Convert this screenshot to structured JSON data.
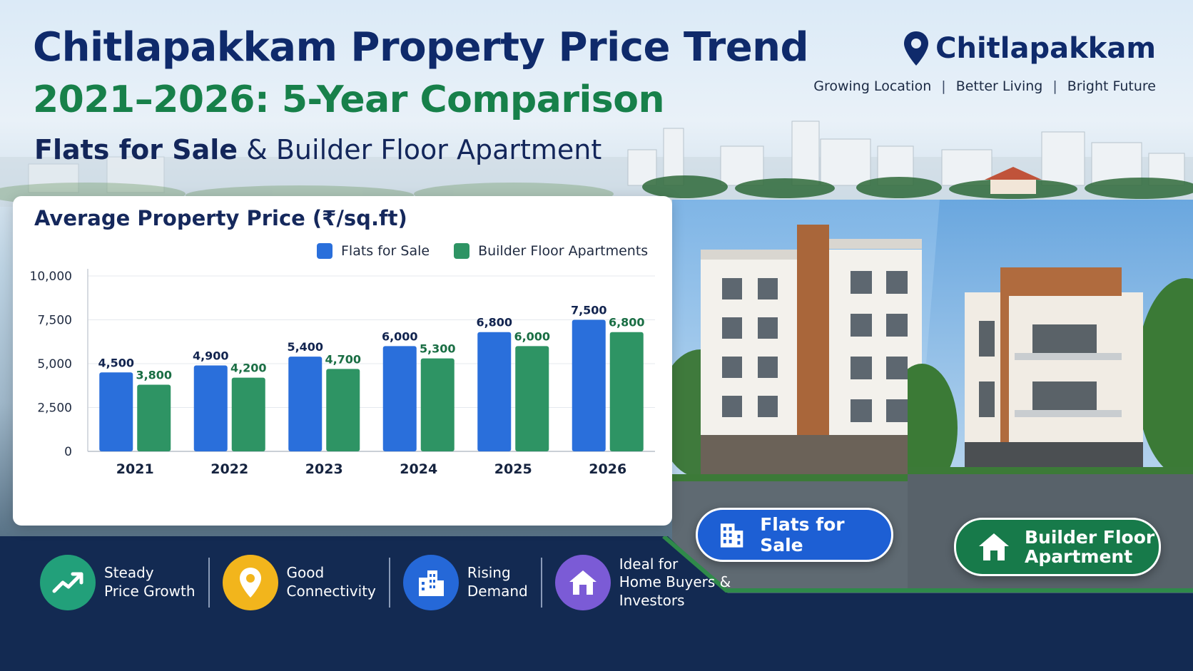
{
  "header": {
    "title_line1": "Chitlapakkam Property Price Trend",
    "title_line2": "2021–2026: 5-Year Comparison",
    "title_line3_strong": "Flats for Sale",
    "title_line3_rest": "& Builder Floor Apartment"
  },
  "brand": {
    "name": "Chitlapakkam",
    "tagline": [
      "Growing Location",
      "Better Living",
      "Bright Future"
    ],
    "separator": "|"
  },
  "chart_data": {
    "type": "bar",
    "title": "Average Property Price (₹/sq.ft)",
    "categories": [
      "2021",
      "2022",
      "2023",
      "2024",
      "2025",
      "2026"
    ],
    "series": [
      {
        "name": "Flats for Sale",
        "values": [
          4500,
          4900,
          5400,
          6000,
          6800,
          7500
        ],
        "color": "#2a6fdb",
        "label_color": "#12244f"
      },
      {
        "name": "Builder Floor Apartments",
        "values": [
          3800,
          4200,
          4700,
          5300,
          6000,
          6800
        ],
        "color": "#2e9464",
        "label_color": "#1a6e44"
      }
    ],
    "y_ticks": [
      "0",
      "2,500",
      "5,000",
      "7,500",
      "10,000"
    ],
    "ylim": [
      0,
      10000
    ],
    "grid": true,
    "legend": "top-right"
  },
  "badges": {
    "flats": "Flats for Sale",
    "builder_line1": "Builder Floor",
    "builder_line2": "Apartment"
  },
  "features": [
    {
      "lines": [
        "Steady",
        "Price Growth"
      ],
      "icon": "trend-up-icon",
      "color": "#22a07a"
    },
    {
      "lines": [
        "Good",
        "Connectivity"
      ],
      "icon": "location-pin-icon",
      "color": "#f2b51c"
    },
    {
      "lines": [
        "Rising",
        "Demand"
      ],
      "icon": "buildings-icon",
      "color": "#2568d8"
    },
    {
      "lines": [
        "Ideal for",
        "Home Buyers &",
        "Investors"
      ],
      "icon": "home-icon",
      "color": "#7b5bd6"
    }
  ]
}
